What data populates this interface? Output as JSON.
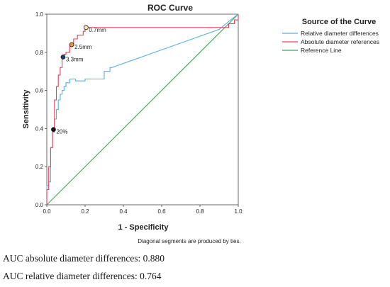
{
  "chart_data": {
    "type": "line",
    "title": "ROC Curve",
    "xlabel": "1 - Specificity",
    "ylabel": "Sensitivity",
    "xlim": [
      0,
      1
    ],
    "ylim": [
      0,
      1
    ],
    "x_ticks": [
      "0.0",
      "0.2",
      "0.4",
      "0.6",
      "0.8",
      "1.0"
    ],
    "y_ticks": [
      "0.0",
      "0.2",
      "0.4",
      "0.6",
      "0.8",
      "1.0"
    ],
    "grid": false,
    "legend": {
      "title": "Source of the Curve",
      "position": "right"
    },
    "series": [
      {
        "name": "Relative diameter differences",
        "color": "#5aaee0",
        "x": [
          0,
          0,
          0.01,
          0.01,
          0.02,
          0.02,
          0.03,
          0.03,
          0.04,
          0.04,
          0.05,
          0.05,
          0.06,
          0.06,
          0.07,
          0.07,
          0.08,
          0.08,
          0.09,
          0.09,
          0.1,
          0.1,
          0.12,
          0.12,
          0.15,
          0.15,
          0.2,
          0.2,
          0.3,
          0.3,
          0.33,
          0.33,
          0.34,
          0.34,
          0.9,
          0.96,
          1.0
        ],
        "y": [
          0,
          0.1,
          0.1,
          0.12,
          0.12,
          0.3,
          0.3,
          0.38,
          0.38,
          0.45,
          0.45,
          0.5,
          0.5,
          0.55,
          0.55,
          0.58,
          0.58,
          0.6,
          0.6,
          0.62,
          0.62,
          0.64,
          0.64,
          0.66,
          0.66,
          0.65,
          0.65,
          0.66,
          0.66,
          0.7,
          0.7,
          0.72,
          0.72,
          0.72,
          0.92,
          0.97,
          1.0
        ]
      },
      {
        "name": "Absolute diameter references",
        "color": "#e8405a",
        "x": [
          0,
          0,
          0.01,
          0.01,
          0.02,
          0.02,
          0.03,
          0.03,
          0.04,
          0.04,
          0.05,
          0.05,
          0.06,
          0.06,
          0.07,
          0.07,
          0.08,
          0.08,
          0.09,
          0.09,
          0.1,
          0.1,
          0.12,
          0.12,
          0.14,
          0.14,
          0.16,
          0.16,
          0.19,
          0.19,
          0.2,
          0.2,
          0.95,
          0.95,
          0.98,
          0.98,
          1.0,
          1.0
        ],
        "y": [
          0,
          0.08,
          0.08,
          0.2,
          0.2,
          0.3,
          0.3,
          0.4,
          0.4,
          0.55,
          0.55,
          0.62,
          0.62,
          0.68,
          0.68,
          0.72,
          0.72,
          0.77,
          0.77,
          0.79,
          0.79,
          0.8,
          0.8,
          0.84,
          0.84,
          0.87,
          0.87,
          0.89,
          0.89,
          0.91,
          0.91,
          0.93,
          0.93,
          0.95,
          0.95,
          0.97,
          0.97,
          1.0
        ]
      },
      {
        "name": "Reference Line",
        "color": "#3aa856",
        "x": [
          0,
          1
        ],
        "y": [
          0,
          1
        ]
      }
    ],
    "annotations": [
      {
        "label": "0.7mm",
        "x": 0.205,
        "y": 0.93,
        "color": "#f5e6a8"
      },
      {
        "label": "2.5mm",
        "x": 0.13,
        "y": 0.84,
        "color": "#f0902a"
      },
      {
        "label": "3.3mm",
        "x": 0.085,
        "y": 0.775,
        "color": "#1f3f6e"
      },
      {
        "label": "20%",
        "x": 0.035,
        "y": 0.395,
        "color": "#111111"
      }
    ],
    "footnote": "Diagonal segments are produced by ties."
  },
  "auc": {
    "absolute": "AUC absolute diameter differences: 0.880",
    "relative": "AUC relative diameter differences: 0.764"
  }
}
